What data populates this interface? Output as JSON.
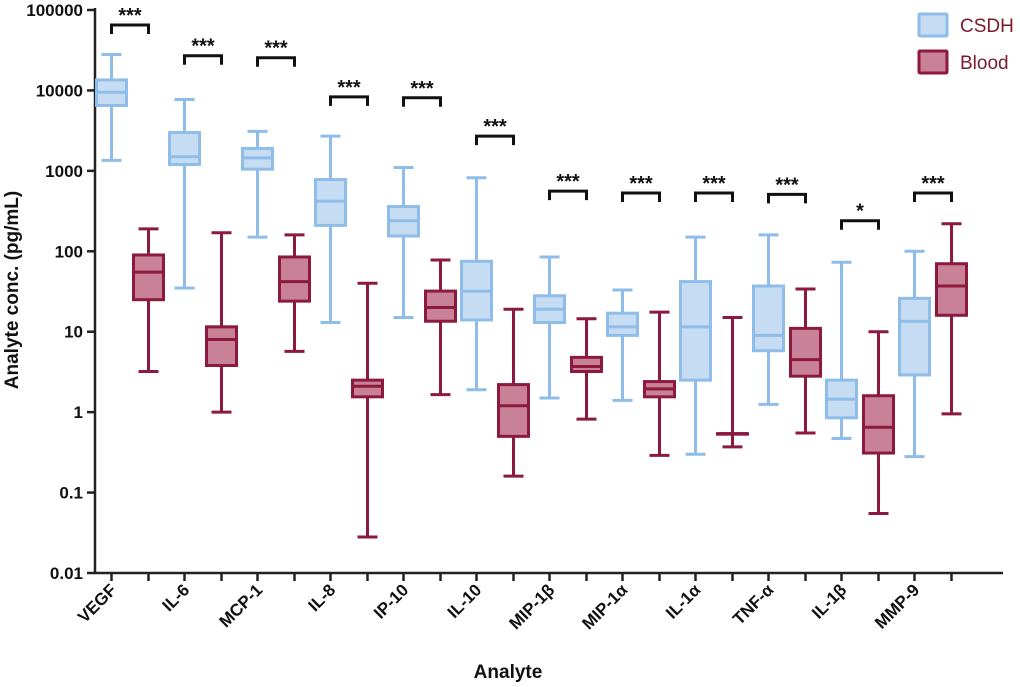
{
  "chart_data": {
    "type": "boxplot",
    "title": "",
    "xlabel": "Analyte",
    "ylabel": "Analyte conc. (pg/mL)",
    "yscale": "log",
    "ylim": [
      0.01,
      100000
    ],
    "ytick_values": [
      0.01,
      0.1,
      1,
      10,
      100,
      1000,
      10000,
      100000
    ],
    "ytick_labels": [
      "0.01",
      "0.1",
      "1",
      "10",
      "100",
      "1000",
      "10000",
      "100000"
    ],
    "categories": [
      "VEGF",
      "IL-6",
      "MCP-1",
      "IL-8",
      "IP-10",
      "IL-10",
      "MIP-1β",
      "MIP-1α",
      "IL-1α",
      "TNF-α",
      "IL-1β",
      "MMP-9"
    ],
    "legend_position": "top-right",
    "series": [
      {
        "name": "CSDH",
        "fill": "#c6dcf3",
        "stroke": "#8fbde9",
        "boxes": [
          {
            "min": 1350,
            "q1": 6500,
            "median": 9500,
            "q3": 13500,
            "max": 28000
          },
          {
            "min": 35,
            "q1": 1200,
            "median": 1500,
            "q3": 3000,
            "max": 7700
          },
          {
            "min": 150,
            "q1": 1050,
            "median": 1450,
            "q3": 1900,
            "max": 3100
          },
          {
            "min": 13,
            "q1": 210,
            "median": 420,
            "q3": 780,
            "max": 2700
          },
          {
            "min": 15,
            "q1": 155,
            "median": 240,
            "q3": 360,
            "max": 1100
          },
          {
            "min": 1.9,
            "q1": 14,
            "median": 32,
            "q3": 75,
            "max": 820
          },
          {
            "min": 1.5,
            "q1": 13,
            "median": 19,
            "q3": 28,
            "max": 85
          },
          {
            "min": 1.4,
            "q1": 9,
            "median": 11.5,
            "q3": 17,
            "max": 33
          },
          {
            "min": 0.3,
            "q1": 2.5,
            "median": 11.5,
            "q3": 42,
            "max": 150
          },
          {
            "min": 1.25,
            "q1": 5.8,
            "median": 9,
            "q3": 37,
            "max": 160
          },
          {
            "min": 0.47,
            "q1": 0.85,
            "median": 1.45,
            "q3": 2.5,
            "max": 73
          },
          {
            "min": 0.28,
            "q1": 2.9,
            "median": 13.5,
            "q3": 26,
            "max": 100
          }
        ]
      },
      {
        "name": "Blood",
        "fill": "#c88199",
        "stroke": "#8b1a3c",
        "boxes": [
          {
            "min": 3.2,
            "q1": 25,
            "median": 55,
            "q3": 90,
            "max": 190
          },
          {
            "min": 1.0,
            "q1": 3.8,
            "median": 8,
            "q3": 11.5,
            "max": 170
          },
          {
            "min": 5.7,
            "q1": 24,
            "median": 42,
            "q3": 85,
            "max": 160
          },
          {
            "min": 0.028,
            "q1": 1.55,
            "median": 2.1,
            "q3": 2.5,
            "max": 40
          },
          {
            "min": 1.65,
            "q1": 13.5,
            "median": 20,
            "q3": 32,
            "max": 78
          },
          {
            "min": 0.16,
            "q1": 0.5,
            "median": 1.2,
            "q3": 2.2,
            "max": 19
          },
          {
            "min": 0.82,
            "q1": 3.2,
            "median": 3.7,
            "q3": 4.8,
            "max": 14.5
          },
          {
            "min": 0.29,
            "q1": 1.55,
            "median": 1.95,
            "q3": 2.4,
            "max": 17.5
          },
          {
            "min": 0.37,
            "q1": 0.54,
            "median": 0.54,
            "q3": 0.54,
            "max": 15
          },
          {
            "min": 0.55,
            "q1": 2.8,
            "median": 4.5,
            "q3": 11,
            "max": 34
          },
          {
            "min": 0.055,
            "q1": 0.31,
            "median": 0.65,
            "q3": 1.6,
            "max": 10
          },
          {
            "min": 0.95,
            "q1": 16,
            "median": 37,
            "q3": 70,
            "max": 220
          }
        ]
      }
    ],
    "annotations": [
      {
        "category": "VEGF",
        "label": "***",
        "y": 65000
      },
      {
        "category": "IL-6",
        "label": "***",
        "y": 27000
      },
      {
        "category": "MCP-1",
        "label": "***",
        "y": 25500
      },
      {
        "category": "IL-8",
        "label": "***",
        "y": 8300
      },
      {
        "category": "IP-10",
        "label": "***",
        "y": 8100
      },
      {
        "category": "IL-10",
        "label": "***",
        "y": 2700
      },
      {
        "category": "MIP-1β",
        "label": "***",
        "y": 560
      },
      {
        "category": "MIP-1α",
        "label": "***",
        "y": 530
      },
      {
        "category": "IL-1α",
        "label": "***",
        "y": 530
      },
      {
        "category": "TNF-α",
        "label": "***",
        "y": 510
      },
      {
        "category": "IL-1β",
        "label": "*",
        "y": 240
      },
      {
        "category": "MMP-9",
        "label": "***",
        "y": 530
      }
    ]
  }
}
